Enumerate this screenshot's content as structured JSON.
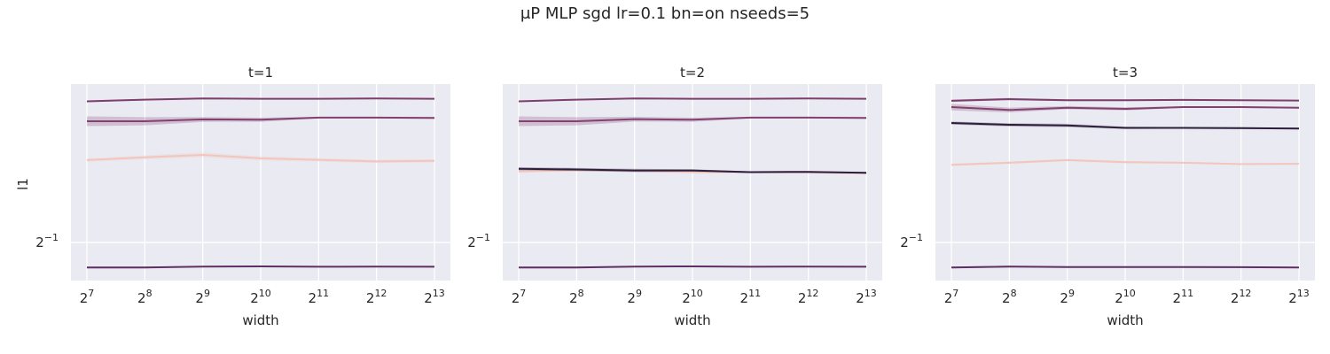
{
  "figure": {
    "suptitle": "μP MLP sgd lr=0.1 bn=on nseeds=5"
  },
  "chart_data": {
    "type": "line",
    "x_scale": "log2",
    "y_scale": "log2",
    "xlabel": "width",
    "ylabel": "l1",
    "x": [
      128,
      256,
      512,
      1024,
      2048,
      4096,
      8192
    ],
    "x_tick_labels": [
      {
        "base": "2",
        "exp": "7"
      },
      {
        "base": "2",
        "exp": "8"
      },
      {
        "base": "2",
        "exp": "9"
      },
      {
        "base": "2",
        "exp": "10"
      },
      {
        "base": "2",
        "exp": "11"
      },
      {
        "base": "2",
        "exp": "12"
      },
      {
        "base": "2",
        "exp": "13"
      }
    ],
    "y_tick": {
      "value": 0.5,
      "base": "2",
      "exp": "−1"
    },
    "ylim": [
      0.455,
      0.74
    ],
    "grid": true,
    "background": "#eaeaf2",
    "panels": [
      {
        "title": "t=1",
        "series": [
          {
            "color": "#f2c6bd",
            "values": [
              0.613,
              0.6173,
              0.621,
              0.6158,
              0.6134,
              0.611,
              0.612
            ],
            "band": [
              0.004,
              0.005,
              0.006,
              0.005,
              0.004,
              0.004,
              0.004
            ]
          },
          {
            "color": "#83416f",
            "values": [
              0.675,
              0.675,
              0.678,
              0.6775,
              0.681,
              0.681,
              0.6805
            ],
            "band": [
              0.012,
              0.01,
              0.006,
              0.005,
              0.002,
              0.002,
              0.002
            ]
          },
          {
            "color": "#7d3e6b",
            "values": [
              0.709,
              0.712,
              0.714,
              0.7135,
              0.7135,
              0.714,
              0.7135
            ],
            "band": [
              0.002,
              0.002,
              0.001,
              0.001,
              0.001,
              0.001,
              0.001
            ]
          },
          {
            "color": "#5f2f63",
            "values": [
              0.47,
              0.47,
              0.471,
              0.4712,
              0.4708,
              0.471,
              0.4708
            ],
            "band": [
              0.002,
              0.002,
              0.001,
              0.001,
              0.001,
              0.001,
              0.001
            ]
          }
        ]
      },
      {
        "title": "t=2",
        "series": [
          {
            "color": "#f2c6bd",
            "values": [
              0.596,
              0.598,
              0.597,
              0.595,
              0.595,
              0.5945,
              0.5935
            ],
            "band": [
              0.003,
              0.003,
              0.003,
              0.003,
              0.002,
              0.002,
              0.002
            ]
          },
          {
            "color": "#2e1e3b",
            "values": [
              0.6,
              0.599,
              0.5975,
              0.5975,
              0.595,
              0.5955,
              0.594
            ],
            "band": [
              0.004,
              0.004,
              0.004,
              0.003,
              0.002,
              0.002,
              0.002
            ]
          },
          {
            "color": "#83416f",
            "values": [
              0.675,
              0.675,
              0.6785,
              0.6775,
              0.681,
              0.681,
              0.6805
            ],
            "band": [
              0.012,
              0.01,
              0.006,
              0.005,
              0.002,
              0.002,
              0.002
            ]
          },
          {
            "color": "#7d3e6b",
            "values": [
              0.709,
              0.712,
              0.714,
              0.7135,
              0.7135,
              0.714,
              0.7135
            ],
            "band": [
              0.002,
              0.002,
              0.001,
              0.001,
              0.001,
              0.001,
              0.001
            ]
          },
          {
            "color": "#5f2f63",
            "values": [
              0.47,
              0.47,
              0.471,
              0.4712,
              0.4708,
              0.471,
              0.4708
            ],
            "band": [
              0.002,
              0.002,
              0.001,
              0.001,
              0.001,
              0.001,
              0.001
            ]
          }
        ]
      },
      {
        "title": "t=3",
        "series": [
          {
            "color": "#f2c6bd",
            "values": [
              0.606,
              0.609,
              0.613,
              0.61,
              0.609,
              0.607,
              0.6075
            ],
            "band": [
              0.003,
              0.003,
              0.003,
              0.003,
              0.002,
              0.002,
              0.002
            ]
          },
          {
            "color": "#2e1e3b",
            "values": [
              0.672,
              0.669,
              0.668,
              0.664,
              0.664,
              0.6635,
              0.663
            ],
            "band": [
              0.004,
              0.004,
              0.004,
              0.003,
              0.002,
              0.002,
              0.002
            ]
          },
          {
            "color": "#83416f",
            "values": [
              0.699,
              0.694,
              0.698,
              0.696,
              0.699,
              0.699,
              0.698
            ],
            "band": [
              0.008,
              0.006,
              0.004,
              0.004,
              0.002,
              0.002,
              0.002
            ]
          },
          {
            "color": "#7d3e6b",
            "values": [
              0.71,
              0.713,
              0.711,
              0.711,
              0.7115,
              0.711,
              0.7105
            ],
            "band": [
              0.003,
              0.003,
              0.002,
              0.002,
              0.001,
              0.001,
              0.001
            ]
          },
          {
            "color": "#5f2f63",
            "values": [
              0.47,
              0.471,
              0.4705,
              0.4705,
              0.4705,
              0.4703,
              0.47
            ],
            "band": [
              0.002,
              0.002,
              0.001,
              0.001,
              0.001,
              0.001,
              0.001
            ]
          }
        ]
      }
    ]
  }
}
